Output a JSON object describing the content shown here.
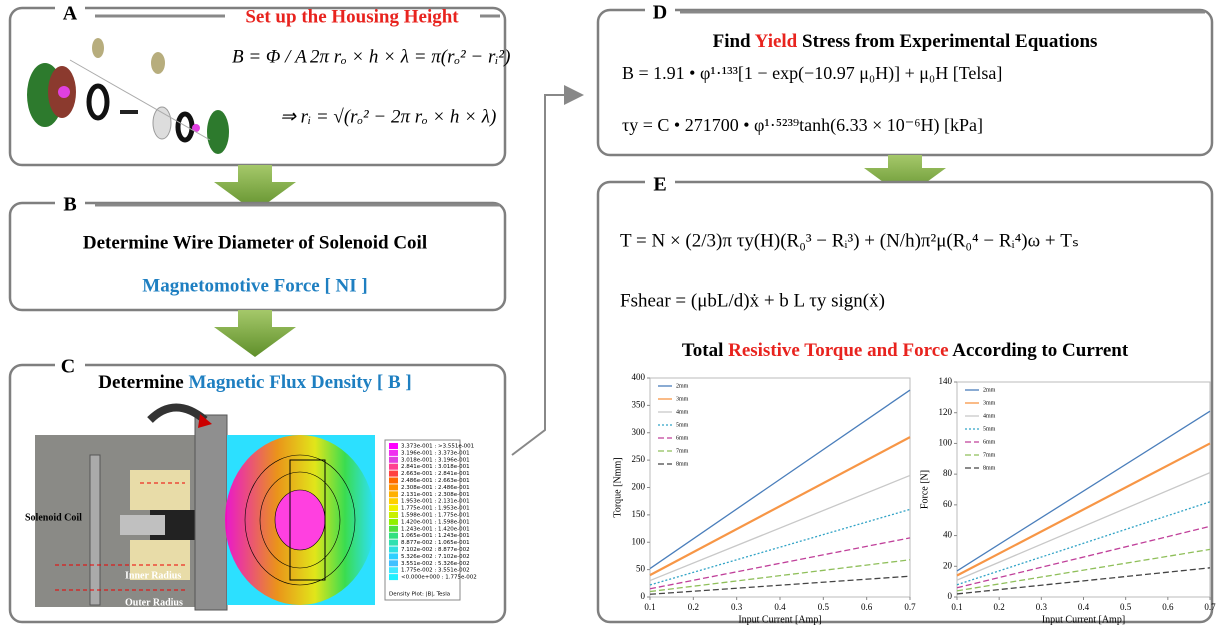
{
  "panel_a": {
    "letter": "A",
    "title": "Set up the Housing Height",
    "equations": [
      "B = Φ / A",
      "2π rₒ × h × λ = π(rₒ² − rᵢ²)",
      "⇒ rᵢ = √(rₒ² − 2π rₒ × h × λ)"
    ]
  },
  "panel_b": {
    "letter": "B",
    "title": "Determine Wire Diameter of Solenoid Coil",
    "subtitle": "Magnetomotive Force [ NI ]"
  },
  "panel_c": {
    "letter": "C",
    "title": [
      "Determine",
      "Magnetic Flux Density [ B ]"
    ],
    "labels": [
      "Solenoid Coil",
      "Inner Radius",
      "Outer Radius"
    ],
    "legend": [
      "3.373e-001 : >3.551e-001",
      "3.196e-001 : 3.373e-001",
      "3.018e-001 : 3.196e-001",
      "2.841e-001 : 3.018e-001",
      "2.663e-001 : 2.841e-001",
      "2.486e-001 : 2.663e-001",
      "2.308e-001 : 2.486e-001",
      "2.131e-001 : 2.308e-001",
      "1.953e-001 : 2.131e-001",
      "1.775e-001 : 1.953e-001",
      "1.598e-001 : 1.775e-001",
      "1.420e-001 : 1.598e-001",
      "1.243e-001 : 1.420e-001",
      "1.065e-001 : 1.243e-001",
      "8.877e-002 : 1.065e-001",
      "7.102e-002 : 8.877e-002",
      "5.326e-002 : 7.102e-002",
      "3.551e-002 : 5.326e-002",
      "1.775e-002 : 3.551e-002",
      "<0.000e+000 : 1.775e-002"
    ],
    "legend_caption": "Density Plot: |B|, Tesla"
  },
  "panel_d": {
    "letter": "D",
    "title": [
      "Find",
      "Yield",
      "Stress",
      "from Experimental Equations"
    ],
    "equations": [
      "B = 1.91 • φ¹·¹³³[1 − exp(−10.97 μ₀H)] + μ₀H   [Telsa]",
      "τy = C • 271700 • φ¹·⁵²³⁹tanh(6.33 × 10⁻⁶H)   [kPa]"
    ]
  },
  "panel_e": {
    "letter": "E",
    "equations": [
      "T = N × (2/3)π τy(H)(R₀³ − Rᵢ³) + (N/h)π²μ(R₀⁴ − Rᵢ⁴)ω + Tₛ",
      "Fshear = (μbL/d)ẋ + b L τy sign(ẋ)"
    ],
    "title": [
      "Total",
      "Resistive Torque and Force",
      "According to Current"
    ],
    "charts": [
      {
        "type": "line",
        "xlabel": "Input Current [Amp]",
        "ylabel": "Torque [Nmm]",
        "legend": "upper left",
        "x": [
          0.1,
          0.7
        ],
        "xlim": [
          0.1,
          0.7
        ],
        "xticks": [
          0.1,
          0.2,
          0.3,
          0.4,
          0.5,
          0.6,
          0.7
        ],
        "ylim": [
          0,
          400
        ],
        "yticks": [
          0,
          50,
          100,
          150,
          200,
          250,
          300,
          350,
          400
        ],
        "series": [
          {
            "name": "2mm",
            "color": "#4a7ebb",
            "dash": "solid",
            "values": [
              52,
              378
            ]
          },
          {
            "name": "3mm",
            "color": "#f79646",
            "dash": "solid",
            "values": [
              40,
              292
            ]
          },
          {
            "name": "4mm",
            "color": "#c8c8c8",
            "dash": "solid",
            "values": [
              30,
              222
            ]
          },
          {
            "name": "5mm",
            "color": "#31a3c6",
            "dash": "dotted",
            "values": [
              22,
              160
            ]
          },
          {
            "name": "6mm",
            "color": "#c0409a",
            "dash": "dashed",
            "values": [
              15,
              108
            ]
          },
          {
            "name": "7mm",
            "color": "#8fbf5a",
            "dash": "dashed",
            "values": [
              10,
              68
            ]
          },
          {
            "name": "8mm",
            "color": "#444444",
            "dash": "dashed",
            "values": [
              5,
              38
            ]
          }
        ]
      },
      {
        "type": "line",
        "xlabel": "Input Current [Amp]",
        "ylabel": "Force [N]",
        "legend": "upper left",
        "x": [
          0.1,
          0.7
        ],
        "xlim": [
          0.1,
          0.7
        ],
        "xticks": [
          0.1,
          0.2,
          0.3,
          0.4,
          0.5,
          0.6,
          0.7
        ],
        "ylim": [
          0,
          140
        ],
        "yticks": [
          0,
          20,
          40,
          60,
          80,
          100,
          120,
          140
        ],
        "series": [
          {
            "name": "2mm",
            "color": "#4a7ebb",
            "dash": "solid",
            "values": [
              17,
              121
            ]
          },
          {
            "name": "3mm",
            "color": "#f79646",
            "dash": "solid",
            "values": [
              14,
              100
            ]
          },
          {
            "name": "4mm",
            "color": "#c8c8c8",
            "dash": "solid",
            "values": [
              11,
              81
            ]
          },
          {
            "name": "5mm",
            "color": "#31a3c6",
            "dash": "dotted",
            "values": [
              8,
              62
            ]
          },
          {
            "name": "6mm",
            "color": "#c0409a",
            "dash": "dashed",
            "values": [
              6,
              46
            ]
          },
          {
            "name": "7mm",
            "color": "#8fbf5a",
            "dash": "dashed",
            "values": [
              4,
              31
            ]
          },
          {
            "name": "8mm",
            "color": "#444444",
            "dash": "dashed",
            "values": [
              2,
              19
            ]
          }
        ]
      }
    ]
  }
}
